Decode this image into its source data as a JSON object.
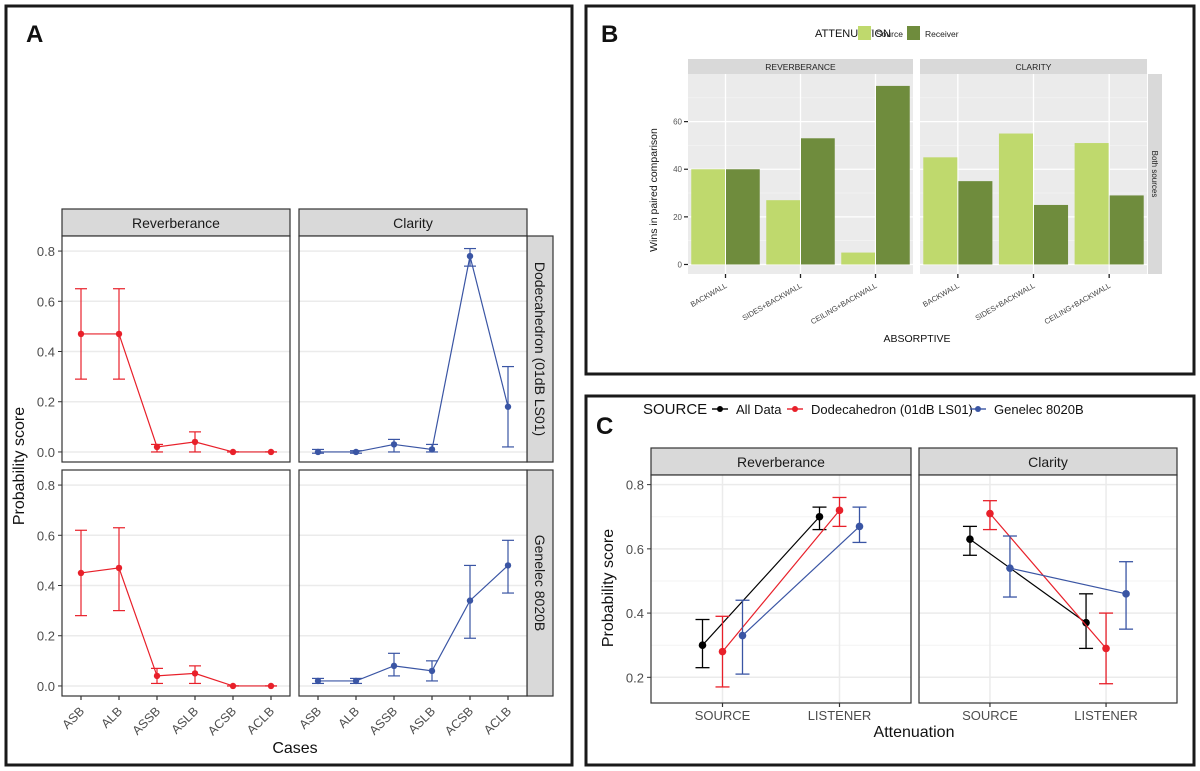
{
  "panel_labels": {
    "a": "A",
    "b": "B",
    "c": "C"
  },
  "chart_data": [
    {
      "id": "A",
      "type": "line",
      "xlabel": "Cases",
      "ylabel": "Probability score",
      "categories": [
        "ASB",
        "ALB",
        "ASSB",
        "ASLB",
        "ACSB",
        "ACLB"
      ],
      "ylim": [
        -0.04,
        0.86
      ],
      "yticks": [
        "0.0",
        "0.2",
        "0.4",
        "0.6",
        "0.8"
      ],
      "col_facets": [
        "Reverberance",
        "Clarity"
      ],
      "row_facets": [
        "Dodecahedron (01dB LS01)",
        "Genelec 8020B"
      ],
      "grid": true,
      "panels": [
        {
          "row": 0,
          "col": 0,
          "color": "#e8202a",
          "values": [
            0.47,
            0.47,
            0.02,
            0.04,
            0.0,
            0.0
          ],
          "lower": [
            0.29,
            0.29,
            0.0,
            0.0,
            0.0,
            0.0
          ],
          "upper": [
            0.65,
            0.65,
            0.03,
            0.08,
            0.0,
            0.0
          ]
        },
        {
          "row": 0,
          "col": 1,
          "color": "#3a55a4",
          "values": [
            0.0,
            0.0,
            0.03,
            0.01,
            0.78,
            0.18
          ],
          "lower": [
            -0.005,
            -0.005,
            0.0,
            0.0,
            0.74,
            0.02
          ],
          "upper": [
            0.01,
            0.005,
            0.05,
            0.03,
            0.81,
            0.34
          ]
        },
        {
          "row": 1,
          "col": 0,
          "color": "#e8202a",
          "values": [
            0.45,
            0.47,
            0.04,
            0.05,
            0.0,
            0.0
          ],
          "lower": [
            0.28,
            0.3,
            0.01,
            0.01,
            0.0,
            0.0
          ],
          "upper": [
            0.62,
            0.63,
            0.07,
            0.08,
            0.0,
            0.0
          ]
        },
        {
          "row": 1,
          "col": 1,
          "color": "#3a55a4",
          "values": [
            0.02,
            0.02,
            0.08,
            0.06,
            0.34,
            0.48
          ],
          "lower": [
            0.01,
            0.01,
            0.04,
            0.02,
            0.19,
            0.37
          ],
          "upper": [
            0.03,
            0.03,
            0.13,
            0.1,
            0.48,
            0.58
          ]
        }
      ]
    },
    {
      "id": "B",
      "type": "bar",
      "xlabel": "ABSORPTIVE",
      "ylabel": "Wins in paired comparison",
      "legend_title": "ATTENUATION",
      "legend_position": "top",
      "categories": [
        "BACKWALL",
        "SIDES+BACKWALL",
        "CEILING+BACKWALL"
      ],
      "ylim": [
        -4,
        80
      ],
      "yticks": [
        "0",
        "20",
        "40",
        "60"
      ],
      "col_facets": [
        "REVERBERANCE",
        "CLARITY"
      ],
      "row_facet": "Both sources",
      "series_meta": [
        {
          "name": "Source",
          "color": "#bfd96d"
        },
        {
          "name": "Receiver",
          "color": "#6f8c3d"
        }
      ],
      "panels": [
        {
          "facet": "REVERBERANCE",
          "series": [
            {
              "name": "Source",
              "values": [
                40,
                27,
                5
              ]
            },
            {
              "name": "Receiver",
              "values": [
                40,
                53,
                75
              ]
            }
          ]
        },
        {
          "facet": "CLARITY",
          "series": [
            {
              "name": "Source",
              "values": [
                45,
                55,
                51
              ]
            },
            {
              "name": "Receiver",
              "values": [
                35,
                25,
                29
              ]
            }
          ]
        }
      ]
    },
    {
      "id": "C",
      "type": "line",
      "xlabel": "Attenuation",
      "ylabel": "Probability score",
      "legend_title": "SOURCE",
      "legend_position": "top",
      "categories": [
        "SOURCE",
        "LISTENER"
      ],
      "ylim": [
        0.12,
        0.83
      ],
      "yticks": [
        "0.2",
        "0.4",
        "0.6",
        "0.8"
      ],
      "col_facets": [
        "Reverberance",
        "Clarity"
      ],
      "series_meta": [
        {
          "name": "All Data",
          "color": "#000000"
        },
        {
          "name": "Dodecahedron (01dB LS01)",
          "color": "#e8202a"
        },
        {
          "name": "Genelec 8020B",
          "color": "#3a55a4"
        }
      ],
      "panels": [
        {
          "facet": "Reverberance",
          "series": [
            {
              "name": "All Data",
              "values": [
                0.3,
                0.7
              ],
              "lower": [
                0.23,
                0.66
              ],
              "upper": [
                0.38,
                0.73
              ]
            },
            {
              "name": "Dodecahedron (01dB LS01)",
              "values": [
                0.28,
                0.72
              ],
              "lower": [
                0.17,
                0.67
              ],
              "upper": [
                0.39,
                0.76
              ]
            },
            {
              "name": "Genelec 8020B",
              "values": [
                0.33,
                0.67
              ],
              "lower": [
                0.21,
                0.62
              ],
              "upper": [
                0.44,
                0.73
              ]
            }
          ]
        },
        {
          "facet": "Clarity",
          "series": [
            {
              "name": "All Data",
              "values": [
                0.63,
                0.37
              ],
              "lower": [
                0.58,
                0.29
              ],
              "upper": [
                0.67,
                0.46
              ]
            },
            {
              "name": "Dodecahedron (01dB LS01)",
              "values": [
                0.71,
                0.29
              ],
              "lower": [
                0.66,
                0.18
              ],
              "upper": [
                0.75,
                0.4
              ]
            },
            {
              "name": "Genelec 8020B",
              "values": [
                0.54,
                0.46
              ],
              "lower": [
                0.45,
                0.35
              ],
              "upper": [
                0.64,
                0.56
              ]
            }
          ]
        }
      ]
    }
  ]
}
